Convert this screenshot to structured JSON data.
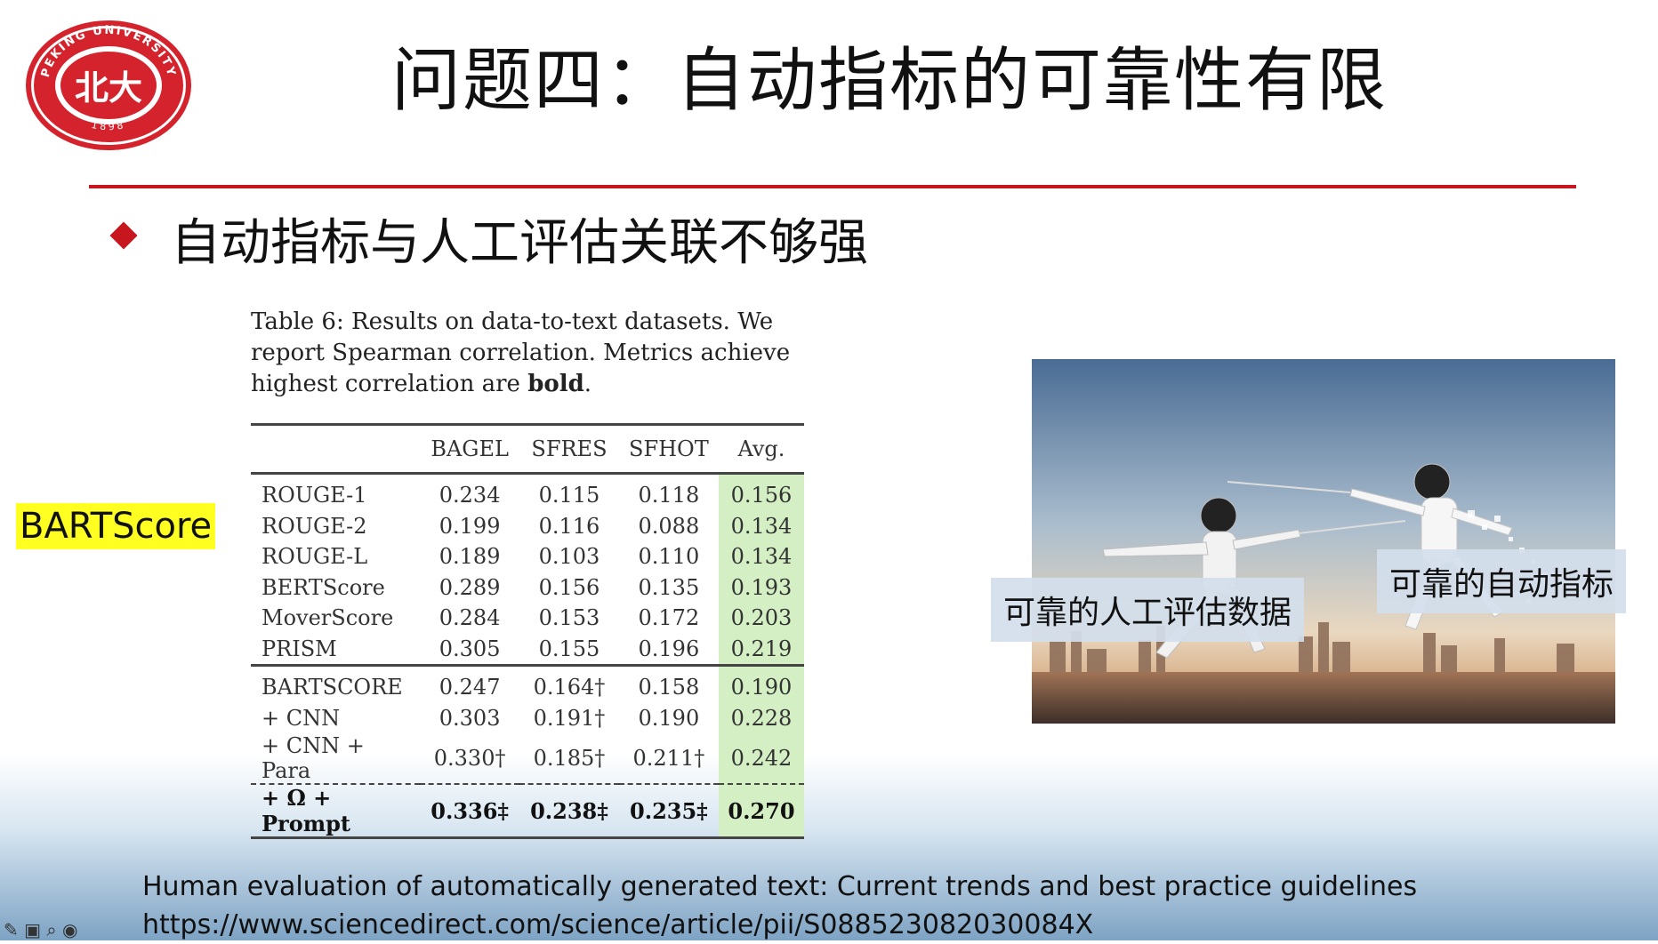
{
  "slide": {
    "title": "问题四：自动指标的可靠性有限",
    "bullet": "自动指标与人工评估关联不够强",
    "tag": "BARTScore"
  },
  "logo": {
    "top_text": "PEKING UNIVERSITY",
    "year": "1898",
    "center": "北大"
  },
  "table": {
    "caption_before_bold": "Table 6: Results on data-to-text datasets. We report Spearman correlation. Metrics achieve highest correlation are ",
    "caption_bold": "bold",
    "caption_after_bold": ".",
    "headers": [
      "",
      "BAGEL",
      "SFRES",
      "SFHOT",
      "Avg."
    ],
    "rows": [
      {
        "name": "ROUGE-1",
        "bagel": "0.234",
        "sfres": "0.115",
        "sfhot": "0.118",
        "avg": "0.156"
      },
      {
        "name": "ROUGE-2",
        "bagel": "0.199",
        "sfres": "0.116",
        "sfhot": "0.088",
        "avg": "0.134"
      },
      {
        "name": "ROUGE-L",
        "bagel": "0.189",
        "sfres": "0.103",
        "sfhot": "0.110",
        "avg": "0.134"
      },
      {
        "name": "BERTScore",
        "bagel": "0.289",
        "sfres": "0.156",
        "sfhot": "0.135",
        "avg": "0.193"
      },
      {
        "name": "MoverScore",
        "bagel": "0.284",
        "sfres": "0.153",
        "sfhot": "0.172",
        "avg": "0.203"
      },
      {
        "name": "PRISM",
        "bagel": "0.305",
        "sfres": "0.155",
        "sfhot": "0.196",
        "avg": "0.219"
      },
      {
        "name": "BARTSCORE",
        "bagel": "0.247",
        "sfres": "0.164†",
        "sfhot": "0.158",
        "avg": "0.190"
      },
      {
        "name": "+ CNN",
        "bagel": "0.303",
        "sfres": "0.191†",
        "sfhot": "0.190",
        "avg": "0.228"
      },
      {
        "name": "+ CNN + Para",
        "bagel": "0.330†",
        "sfres": "0.185†",
        "sfhot": "0.211†",
        "avg": "0.242"
      },
      {
        "name": "+ Ω + Prompt",
        "bagel": "0.336‡",
        "sfres": "0.238‡",
        "sfhot": "0.235‡",
        "avg": "0.270"
      }
    ]
  },
  "figure": {
    "label_left": "可靠的人工评估数据",
    "label_right": "可靠的自动指标"
  },
  "reference": {
    "title": "Human evaluation of automatically generated text: Current trends and best practice guidelines",
    "url": "https://www.sciencedirect.com/science/article/pii/S088523082030084X"
  },
  "colors": {
    "accent_red": "#c8161e",
    "highlight_yellow": "#ffff22",
    "avg_green": "#d4efc4"
  },
  "toolbar_icons": [
    "pen-icon",
    "image-icon",
    "zoom-icon",
    "play-icon"
  ]
}
